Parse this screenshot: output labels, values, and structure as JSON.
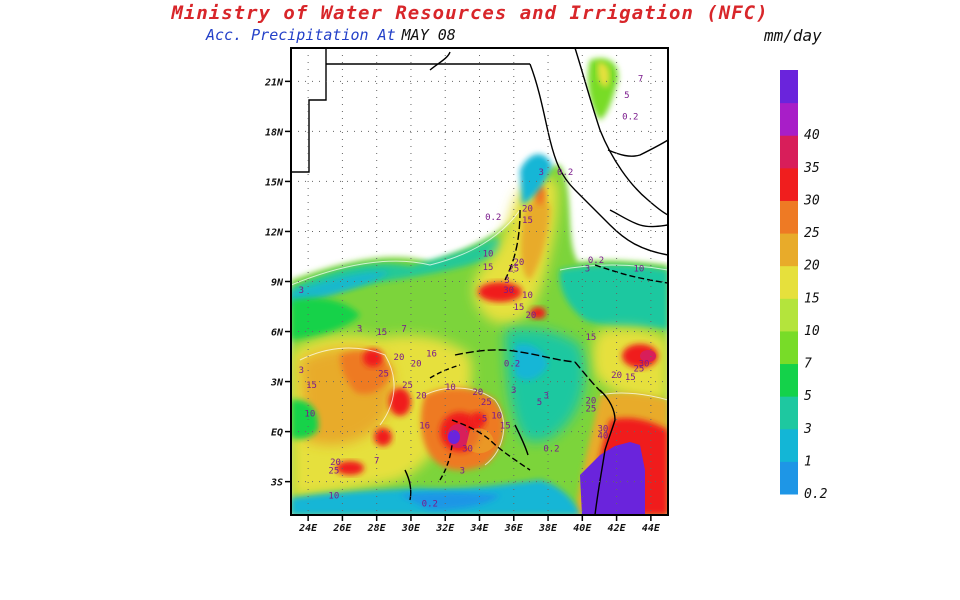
{
  "header": {
    "title": "Ministry of Water Resources and Irrigation (NFC)",
    "subtitle_label": "Acc. Precipitation  At",
    "date": "MAY 08",
    "units": "mm/day"
  },
  "axes": {
    "lat_ticks": [
      {
        "value": 21,
        "label": "21N"
      },
      {
        "value": 18,
        "label": "18N"
      },
      {
        "value": 15,
        "label": "15N"
      },
      {
        "value": 12,
        "label": "12N"
      },
      {
        "value": 9,
        "label": "9N"
      },
      {
        "value": 6,
        "label": "6N"
      },
      {
        "value": 3,
        "label": "3N"
      },
      {
        "value": 0,
        "label": "EQ"
      },
      {
        "value": -3,
        "label": "3S"
      }
    ],
    "lon_ticks": [
      {
        "value": 24,
        "label": "24E"
      },
      {
        "value": 26,
        "label": "26E"
      },
      {
        "value": 28,
        "label": "28E"
      },
      {
        "value": 30,
        "label": "30E"
      },
      {
        "value": 32,
        "label": "32E"
      },
      {
        "value": 34,
        "label": "34E"
      },
      {
        "value": 36,
        "label": "36E"
      },
      {
        "value": 38,
        "label": "38E"
      },
      {
        "value": 40,
        "label": "40E"
      },
      {
        "value": 42,
        "label": "42E"
      },
      {
        "value": 44,
        "label": "44E"
      }
    ],
    "lon_range": [
      23,
      45
    ],
    "lat_range": [
      -5,
      23
    ],
    "grid": true
  },
  "colorbar": {
    "placement": "right",
    "levels": [
      {
        "label": "0.2",
        "color": "#1e96e6"
      },
      {
        "label": "1",
        "color": "#13b6d6"
      },
      {
        "label": "3",
        "color": "#1ec8a0"
      },
      {
        "label": "5",
        "color": "#14d24a"
      },
      {
        "label": "7",
        "color": "#78dc28"
      },
      {
        "label": "10",
        "color": "#b4e43c"
      },
      {
        "label": "15",
        "color": "#e6e03c"
      },
      {
        "label": "20",
        "color": "#e8ab2a"
      },
      {
        "label": "25",
        "color": "#ee7a24"
      },
      {
        "label": "30",
        "color": "#f01e1e"
      },
      {
        "label": "35",
        "color": "#d81e5a"
      },
      {
        "label": "40",
        "color": "#a81ec8"
      },
      {
        "label": "",
        "color": "#6a24dc"
      }
    ]
  },
  "contour_labels": [
    {
      "text": "0.2",
      "lon": 39.0,
      "lat": 15.4
    },
    {
      "text": "3",
      "lon": 37.6,
      "lat": 15.4
    },
    {
      "text": "20",
      "lon": 36.8,
      "lat": 13.2
    },
    {
      "text": "15",
      "lon": 36.8,
      "lat": 12.5
    },
    {
      "text": "0.2",
      "lon": 34.8,
      "lat": 12.7
    },
    {
      "text": "10",
      "lon": 34.5,
      "lat": 10.5
    },
    {
      "text": "15",
      "lon": 34.5,
      "lat": 9.7
    },
    {
      "text": "20",
      "lon": 36.3,
      "lat": 10.0
    },
    {
      "text": "25",
      "lon": 36.0,
      "lat": 9.6
    },
    {
      "text": "3",
      "lon": 35.6,
      "lat": 8.9
    },
    {
      "text": "30",
      "lon": 35.7,
      "lat": 8.3
    },
    {
      "text": "10",
      "lon": 36.8,
      "lat": 8.0
    },
    {
      "text": "15",
      "lon": 36.3,
      "lat": 7.3
    },
    {
      "text": "20",
      "lon": 37.0,
      "lat": 6.8
    },
    {
      "text": "0.2",
      "lon": 40.8,
      "lat": 10.1
    },
    {
      "text": "3",
      "lon": 40.3,
      "lat": 9.6
    },
    {
      "text": "10",
      "lon": 43.3,
      "lat": 9.6
    },
    {
      "text": "0.2",
      "lon": 42.8,
      "lat": 18.7
    },
    {
      "text": "7",
      "lon": 43.4,
      "lat": 21.0
    },
    {
      "text": "5",
      "lon": 42.6,
      "lat": 20.0
    },
    {
      "text": "3",
      "lon": 27.0,
      "lat": 6.0
    },
    {
      "text": "15",
      "lon": 28.3,
      "lat": 5.8
    },
    {
      "text": "7",
      "lon": 29.6,
      "lat": 6.0
    },
    {
      "text": "20",
      "lon": 29.3,
      "lat": 4.3
    },
    {
      "text": "20",
      "lon": 30.3,
      "lat": 3.9
    },
    {
      "text": "25",
      "lon": 28.4,
      "lat": 3.3
    },
    {
      "text": "16",
      "lon": 31.2,
      "lat": 4.5
    },
    {
      "text": "15",
      "lon": 24.2,
      "lat": 2.6
    },
    {
      "text": "10",
      "lon": 24.1,
      "lat": 0.9
    },
    {
      "text": "25",
      "lon": 29.8,
      "lat": 2.6
    },
    {
      "text": "20",
      "lon": 30.6,
      "lat": 2.0
    },
    {
      "text": "10",
      "lon": 32.3,
      "lat": 2.5
    },
    {
      "text": "16",
      "lon": 30.8,
      "lat": 0.2
    },
    {
      "text": "20",
      "lon": 33.9,
      "lat": 2.2
    },
    {
      "text": "25",
      "lon": 34.4,
      "lat": 1.6
    },
    {
      "text": "30",
      "lon": 33.3,
      "lat": -1.2
    },
    {
      "text": "10",
      "lon": 35.0,
      "lat": 0.8
    },
    {
      "text": "15",
      "lon": 35.5,
      "lat": 0.2
    },
    {
      "text": "5",
      "lon": 34.3,
      "lat": 0.6
    },
    {
      "text": "3",
      "lon": 37.9,
      "lat": 2.0
    },
    {
      "text": "5",
      "lon": 37.5,
      "lat": 1.6
    },
    {
      "text": "0.2",
      "lon": 35.9,
      "lat": 3.9
    },
    {
      "text": "3",
      "lon": 36.0,
      "lat": 2.3
    },
    {
      "text": "0.2",
      "lon": 38.2,
      "lat": -1.2
    },
    {
      "text": "15",
      "lon": 40.5,
      "lat": 5.5
    },
    {
      "text": "20",
      "lon": 42.0,
      "lat": 3.2
    },
    {
      "text": "15",
      "lon": 42.8,
      "lat": 3.1
    },
    {
      "text": "30",
      "lon": 43.6,
      "lat": 3.9
    },
    {
      "text": "25",
      "lon": 43.3,
      "lat": 3.6
    },
    {
      "text": "20",
      "lon": 40.5,
      "lat": 1.7
    },
    {
      "text": "25",
      "lon": 40.5,
      "lat": 1.2
    },
    {
      "text": "30",
      "lon": 41.2,
      "lat": 0.0
    },
    {
      "text": "40",
      "lon": 41.2,
      "lat": -0.4
    },
    {
      "text": "20",
      "lon": 25.6,
      "lat": -2.0
    },
    {
      "text": "25",
      "lon": 25.5,
      "lat": -2.5
    },
    {
      "text": "10",
      "lon": 25.5,
      "lat": -4.0
    },
    {
      "text": "0.2",
      "lon": 31.1,
      "lat": -4.5
    },
    {
      "text": "3",
      "lon": 33.0,
      "lat": -2.5
    },
    {
      "text": "7",
      "lon": 28.0,
      "lat": -1.9
    },
    {
      "text": "3",
      "lon": 23.6,
      "lat": 8.3
    },
    {
      "text": "3",
      "lon": 23.6,
      "lat": 3.5
    }
  ]
}
